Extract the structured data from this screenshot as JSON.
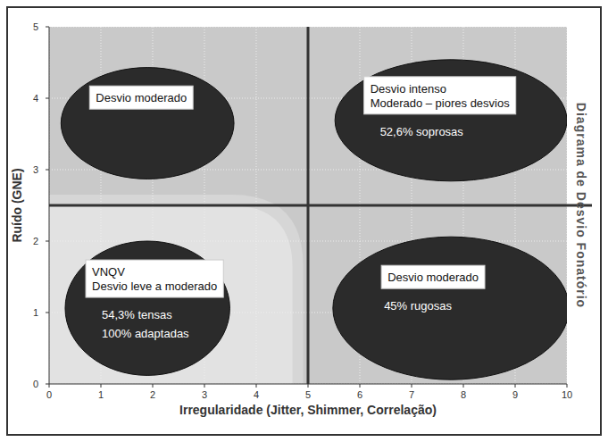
{
  "chart_data": {
    "type": "quadrant",
    "title": "Diagrama de Desvio Fonatório",
    "x_label": "Irregularidade (Jitter, Shimmer, Correlação)",
    "y_label": "Ruído (GNE)",
    "xlim": [
      0,
      10
    ],
    "ylim": [
      0,
      5
    ],
    "xticks": [
      0,
      1,
      2,
      3,
      4,
      5,
      6,
      7,
      8,
      9,
      10
    ],
    "yticks": [
      0,
      1,
      2,
      3,
      4,
      5
    ],
    "grid": true,
    "x_split": 5,
    "y_split": 2.5,
    "normal_zone": {
      "x": 4.7,
      "y": 2.5
    },
    "regions": [
      {
        "label": [
          "Desvio moderado"
        ],
        "cx": 1.9,
        "cy": 3.65,
        "rx": 1.67,
        "ry": 0.78
      },
      {
        "label": [
          "Desvio intenso",
          "Moderado – piores desvios"
        ],
        "notes": [
          "52,6% soprosas"
        ],
        "cx": 7.76,
        "cy": 3.69,
        "rx": 2.24,
        "ry": 0.85
      },
      {
        "label": [
          "VNQV",
          "Desvio leve a moderado"
        ],
        "notes": [
          "54,3% tensas",
          "100% adaptadas"
        ],
        "cx": 1.9,
        "cy": 1.06,
        "rx": 1.59,
        "ry": 0.94
      },
      {
        "label": [
          "Desvio  moderado"
        ],
        "notes": [
          "45% rugosas"
        ],
        "cx": 7.76,
        "cy": 1.06,
        "rx": 2.28,
        "ry": 1.0
      }
    ]
  }
}
